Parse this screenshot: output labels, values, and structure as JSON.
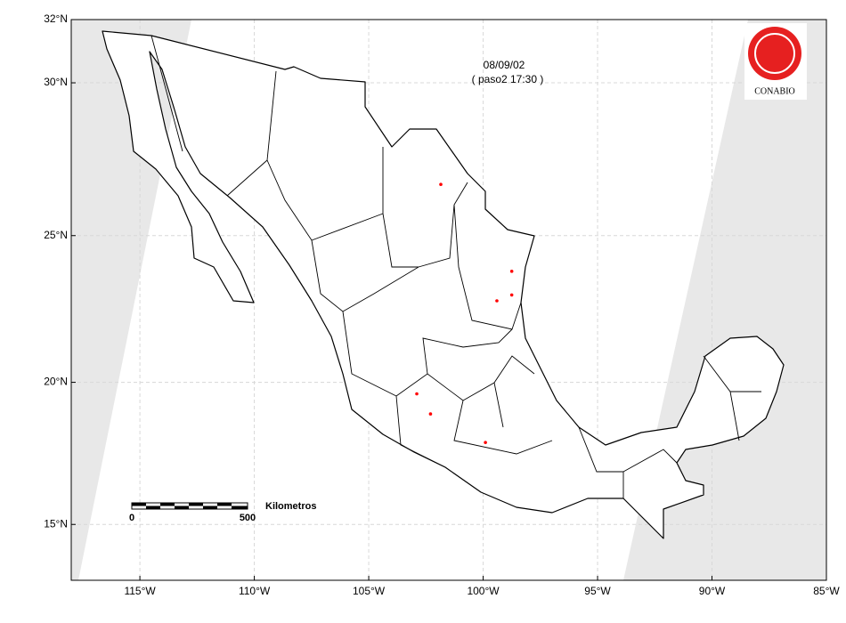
{
  "map_data": {
    "date": "08/09/02",
    "pass": "( paso2 17:30 )",
    "logo": "CONABIO",
    "scale_bar": {
      "title": "Kilometros",
      "start": "0",
      "end": "500"
    },
    "xlim": [
      -118,
      -85
    ],
    "ylim": [
      13,
      32
    ],
    "xticks": [
      {
        "value": -115,
        "label": "115°W"
      },
      {
        "value": -110,
        "label": "110°W"
      },
      {
        "value": -105,
        "label": "105°W"
      },
      {
        "value": -100,
        "label": "100°W"
      },
      {
        "value": -95,
        "label": "95°W"
      },
      {
        "value": -90,
        "label": "90°W"
      },
      {
        "value": -85,
        "label": "85°W"
      }
    ],
    "yticks": [
      {
        "value": 32,
        "label": "32°N"
      },
      {
        "value": 30,
        "label": "30°N"
      },
      {
        "value": 25,
        "label": "25°N"
      },
      {
        "value": 20,
        "label": "20°N"
      },
      {
        "value": 15,
        "label": "15°N"
      }
    ],
    "grid": true,
    "hotspot_color": "#ff0000",
    "hotspots": [
      {
        "lon": -101.85,
        "lat": 26.7
      },
      {
        "lon": -98.75,
        "lat": 23.8
      },
      {
        "lon": -98.75,
        "lat": 23.0
      },
      {
        "lon": -99.4,
        "lat": 22.8
      },
      {
        "lon": -102.9,
        "lat": 19.6
      },
      {
        "lon": -102.3,
        "lat": 18.9
      },
      {
        "lon": -99.9,
        "lat": 17.9
      }
    ]
  }
}
